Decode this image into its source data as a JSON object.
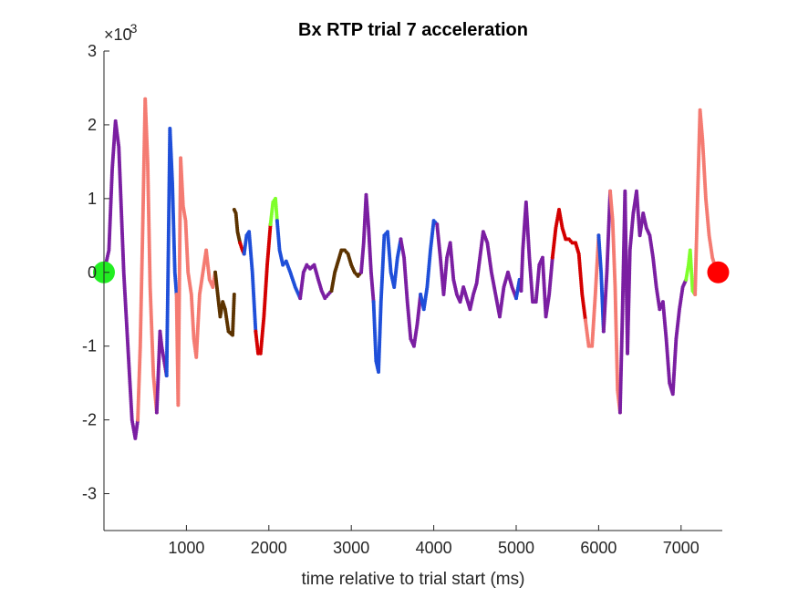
{
  "chart_data": {
    "type": "scatter",
    "title": "Bx  RTP trial 7 acceleration",
    "xlabel": "time relative to trial start (ms)",
    "ylabel": "",
    "y_exponent_label": "×10",
    "y_exponent_power": "-3",
    "xlim": [
      0,
      7500
    ],
    "ylim": [
      -3.5,
      3.0
    ],
    "x_ticks": [
      1000,
      2000,
      3000,
      4000,
      5000,
      6000,
      7000
    ],
    "y_ticks": [
      -3,
      -2,
      -1,
      0,
      1,
      2,
      3
    ],
    "grid": false,
    "segment_colors": {
      "purple": "#7B1FA2",
      "salmon": "#F47B72",
      "blue": "#1F4FD9",
      "red": "#D40000",
      "brown": "#5C3300",
      "lime": "#7FFF2A",
      "start_marker": "#22EE22",
      "end_marker": "#FF0000"
    },
    "series": [
      {
        "color": "purple",
        "x": [
          0,
          60,
          100,
          140,
          180,
          240,
          300,
          340,
          380,
          410
        ],
        "y": [
          0.0,
          0.3,
          1.4,
          2.05,
          1.7,
          0.0,
          -1.2,
          -2.0,
          -2.25,
          -2.0
        ]
      },
      {
        "color": "salmon",
        "x": [
          410,
          440,
          470,
          500,
          530,
          560,
          600,
          640
        ],
        "y": [
          -2.0,
          -1.0,
          0.6,
          2.35,
          1.5,
          -0.2,
          -1.4,
          -1.9
        ]
      },
      {
        "color": "purple",
        "x": [
          640,
          680,
          700,
          730,
          760
        ],
        "y": [
          -1.9,
          -0.8,
          -1.0,
          -1.2,
          -1.4
        ]
      },
      {
        "color": "blue",
        "x": [
          760,
          780,
          800,
          830,
          860,
          880
        ],
        "y": [
          -1.4,
          0.2,
          1.95,
          1.2,
          0.0,
          -0.3
        ]
      },
      {
        "color": "salmon",
        "x": [
          880,
          900,
          930,
          960,
          990,
          1020,
          1060,
          1090,
          1120,
          1160,
          1200,
          1240,
          1280,
          1320,
          1350
        ],
        "y": [
          -0.3,
          -1.8,
          1.55,
          0.9,
          0.7,
          0.0,
          -0.3,
          -0.9,
          -1.15,
          -0.3,
          0.0,
          0.3,
          -0.1,
          -0.2,
          0.0
        ]
      },
      {
        "color": "brown",
        "x": [
          1350,
          1380,
          1410,
          1440,
          1470,
          1510,
          1560,
          1580
        ],
        "y": [
          0.0,
          -0.3,
          -0.6,
          -0.4,
          -0.5,
          -0.8,
          -0.85,
          -0.3
        ]
      },
      {
        "color": "brown",
        "x": [
          1580,
          1600,
          1620,
          1650
        ],
        "y": [
          0.85,
          0.8,
          0.55,
          0.4
        ]
      },
      {
        "color": "red",
        "x": [
          1650,
          1680,
          1700
        ],
        "y": [
          0.4,
          0.3,
          0.25
        ]
      },
      {
        "color": "blue",
        "x": [
          1700,
          1730,
          1760,
          1800,
          1840
        ],
        "y": [
          0.25,
          0.5,
          0.55,
          0.0,
          -0.8
        ]
      },
      {
        "color": "red",
        "x": [
          1840,
          1870,
          1900,
          1940,
          1980,
          2020
        ],
        "y": [
          -0.8,
          -1.1,
          -1.1,
          -0.6,
          0.1,
          0.65
        ]
      },
      {
        "color": "lime",
        "x": [
          2020,
          2050,
          2080,
          2100
        ],
        "y": [
          0.65,
          0.95,
          1.0,
          0.7
        ]
      },
      {
        "color": "blue",
        "x": [
          2100,
          2130,
          2170,
          2210,
          2260,
          2320,
          2380
        ],
        "y": [
          0.7,
          0.3,
          0.1,
          0.15,
          0.0,
          -0.2,
          -0.35
        ]
      },
      {
        "color": "purple",
        "x": [
          2380,
          2420,
          2460,
          2500,
          2550,
          2600,
          2640,
          2680,
          2720,
          2760
        ],
        "y": [
          -0.35,
          0.0,
          0.1,
          0.05,
          0.1,
          -0.1,
          -0.25,
          -0.35,
          -0.3,
          -0.25
        ]
      },
      {
        "color": "brown",
        "x": [
          2760,
          2800,
          2840,
          2880,
          2920,
          2960,
          3000,
          3040,
          3080,
          3120
        ],
        "y": [
          -0.25,
          0.0,
          0.15,
          0.3,
          0.3,
          0.25,
          0.1,
          0.0,
          -0.05,
          0.0
        ]
      },
      {
        "color": "purple",
        "x": [
          3120,
          3150,
          3180,
          3210,
          3240,
          3270
        ],
        "y": [
          0.0,
          0.4,
          1.05,
          0.6,
          0.0,
          -0.4
        ]
      },
      {
        "color": "blue",
        "x": [
          3270,
          3300,
          3330,
          3360,
          3400,
          3440,
          3480,
          3520,
          3560,
          3600
        ],
        "y": [
          -0.4,
          -1.2,
          -1.35,
          -0.4,
          0.5,
          0.55,
          0.0,
          -0.2,
          0.2,
          0.45
        ]
      },
      {
        "color": "purple",
        "x": [
          3600,
          3640,
          3680,
          3720,
          3760,
          3800,
          3840
        ],
        "y": [
          0.45,
          0.2,
          -0.4,
          -0.9,
          -1.0,
          -0.7,
          -0.3
        ]
      },
      {
        "color": "blue",
        "x": [
          3840,
          3880,
          3920,
          3960,
          4000,
          4040
        ],
        "y": [
          -0.3,
          -0.5,
          -0.2,
          0.3,
          0.7,
          0.65
        ]
      },
      {
        "color": "purple",
        "x": [
          4040,
          4080,
          4120,
          4160,
          4200,
          4240,
          4280,
          4320,
          4360,
          4400,
          4440,
          4480,
          4520,
          4560,
          4600,
          4650,
          4700,
          4750,
          4800,
          4850,
          4900,
          4950,
          5000
        ],
        "y": [
          0.65,
          0.2,
          -0.3,
          0.2,
          0.4,
          -0.1,
          -0.3,
          -0.4,
          -0.2,
          -0.35,
          -0.5,
          -0.3,
          -0.15,
          0.2,
          0.55,
          0.4,
          0.0,
          -0.3,
          -0.6,
          -0.2,
          0.0,
          -0.2,
          -0.35
        ]
      },
      {
        "color": "blue",
        "x": [
          5000,
          5040,
          5060
        ],
        "y": [
          -0.35,
          -0.1,
          -0.25
        ]
      },
      {
        "color": "purple",
        "x": [
          5060,
          5080,
          5120,
          5160,
          5200,
          5240,
          5280,
          5320,
          5360,
          5400,
          5440
        ],
        "y": [
          -0.25,
          0.3,
          0.95,
          0.2,
          -0.4,
          -0.4,
          0.1,
          0.2,
          -0.6,
          -0.3,
          0.2
        ]
      },
      {
        "color": "red",
        "x": [
          5440,
          5480,
          5520,
          5560,
          5600,
          5640,
          5680,
          5720,
          5760,
          5800,
          5840
        ],
        "y": [
          0.2,
          0.6,
          0.85,
          0.6,
          0.45,
          0.45,
          0.4,
          0.4,
          0.25,
          -0.3,
          -0.65
        ]
      },
      {
        "color": "salmon",
        "x": [
          5840,
          5880,
          5920,
          5960,
          6000
        ],
        "y": [
          -0.65,
          -1.0,
          -1.0,
          -0.3,
          0.5
        ]
      },
      {
        "color": "blue",
        "x": [
          6000,
          6030,
          6060
        ],
        "y": [
          0.5,
          0.0,
          -0.8
        ]
      },
      {
        "color": "purple",
        "x": [
          6060,
          6100,
          6140
        ],
        "y": [
          -0.8,
          0.0,
          1.1
        ]
      },
      {
        "color": "salmon",
        "x": [
          6140,
          6170,
          6200,
          6230,
          6260
        ],
        "y": [
          1.1,
          0.7,
          -0.2,
          -1.6,
          -1.9
        ]
      },
      {
        "color": "purple",
        "x": [
          6260,
          6290,
          6320,
          6350,
          6380,
          6420,
          6460,
          6500,
          6540,
          6580,
          6620,
          6660,
          6700,
          6740,
          6780,
          6820,
          6860,
          6900,
          6940,
          6980,
          7020,
          7060
        ],
        "y": [
          -1.9,
          -0.5,
          1.1,
          -1.1,
          0.3,
          0.8,
          1.1,
          0.5,
          0.8,
          0.6,
          0.5,
          0.2,
          -0.2,
          -0.5,
          -0.4,
          -0.9,
          -1.5,
          -1.65,
          -0.9,
          -0.5,
          -0.2,
          -0.1
        ]
      },
      {
        "color": "lime",
        "x": [
          7060,
          7090,
          7110,
          7140,
          7170
        ],
        "y": [
          -0.1,
          0.1,
          0.3,
          -0.25,
          -0.3
        ]
      },
      {
        "color": "salmon",
        "x": [
          7170,
          7200,
          7230,
          7260,
          7300,
          7340,
          7380,
          7420,
          7450
        ],
        "y": [
          -0.3,
          1.0,
          2.2,
          1.8,
          1.0,
          0.5,
          0.2,
          0.05,
          0.0
        ]
      }
    ],
    "start_point": {
      "x": 0,
      "y": 0
    },
    "end_point": {
      "x": 7450,
      "y": 0
    }
  }
}
